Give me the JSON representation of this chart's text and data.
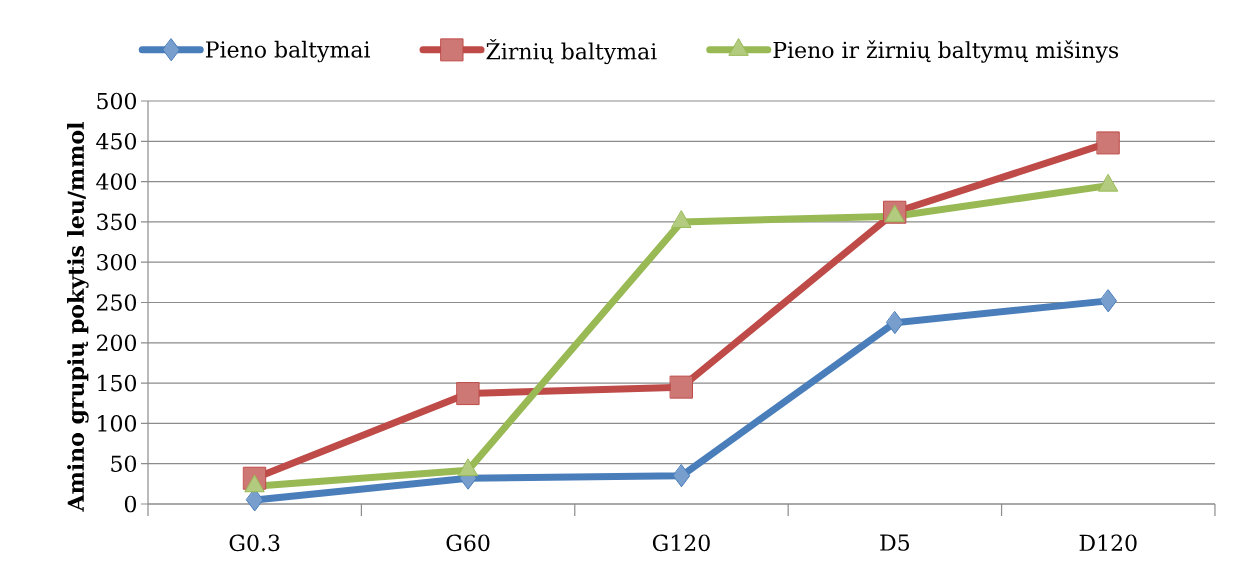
{
  "chart_data": {
    "type": "line",
    "ylabel": "Amino grupių pokytis leu/mmol",
    "categories": [
      "G0.3",
      "G60",
      "G120",
      "D5",
      "D120"
    ],
    "series": [
      {
        "name": "Pieno baltymai",
        "color": "#4a7ebb",
        "marker": "diamond",
        "values": [
          5,
          32,
          35,
          225,
          252
        ]
      },
      {
        "name": "Žirnių baltymai",
        "color": "#be4b48",
        "marker": "square",
        "values": [
          32,
          137,
          145,
          362,
          448
        ]
      },
      {
        "name": "Pieno ir žirnių baltymų mišinys",
        "color": "#98b954",
        "marker": "triangle",
        "values": [
          22,
          42,
          350,
          357,
          395
        ]
      }
    ],
    "ylim": [
      0,
      500
    ],
    "yticks": [
      0,
      50,
      100,
      150,
      200,
      250,
      300,
      350,
      400,
      450,
      500
    ],
    "grid": "y",
    "legend": "top",
    "line_style": "solid"
  }
}
